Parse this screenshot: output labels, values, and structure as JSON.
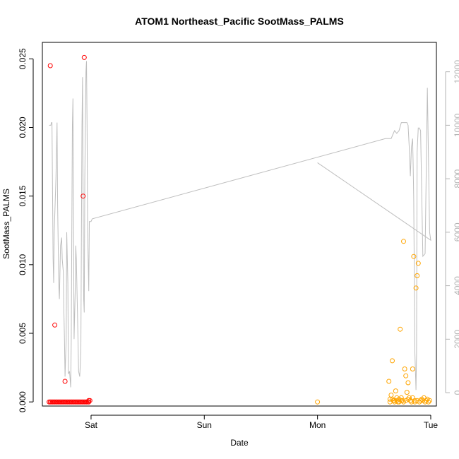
{
  "chart_data": {
    "type": "scatter",
    "title": "ATOM1 Northeast_Pacific SootMass_PALMS",
    "xlabel": "Date",
    "ylabel": "SootMass_PALMS",
    "x_ticks": [
      "Sat",
      "Sun",
      "Mon",
      "Tue"
    ],
    "y_ticks": [
      "0.000",
      "0.005",
      "0.010",
      "0.015",
      "0.020",
      "0.025"
    ],
    "y_ticks_values": [
      0.0,
      0.005,
      0.01,
      0.015,
      0.02,
      0.025
    ],
    "y2_ticks": [
      "0",
      "2000",
      "4000",
      "6000",
      "8000",
      "10000",
      "12000"
    ],
    "y2_ticks_values": [
      0,
      2000,
      4000,
      6000,
      8000,
      10000,
      12000
    ],
    "x_range_days": [
      -0.43,
      3.05
    ],
    "y_range": [
      -0.0003,
      0.0262
    ],
    "y2_range": [
      -500,
      13100
    ],
    "colors": {
      "series1": "#ff0000",
      "series2": "#ffa500",
      "altitude": "#bebebe",
      "right_axis": "#b3b3b3"
    },
    "series": [
      {
        "color": "#ff0000",
        "x": [
          -0.37,
          -0.36,
          -0.35,
          -0.34,
          -0.33,
          -0.32,
          -0.31,
          -0.3,
          -0.29,
          -0.28,
          -0.27,
          -0.26,
          -0.25,
          -0.24,
          -0.23,
          -0.22,
          -0.21,
          -0.2,
          -0.19,
          -0.18,
          -0.17,
          -0.16,
          -0.15,
          -0.14,
          -0.13,
          -0.12,
          -0.11,
          -0.1,
          -0.09,
          -0.08,
          -0.07,
          -0.06,
          -0.05,
          -0.04,
          -0.03,
          -0.02,
          -0.01,
          -0.36,
          -0.32,
          -0.23,
          -0.06,
          -0.07,
          -0.02
        ],
        "y": [
          0.0,
          0.0,
          0.0,
          0.0,
          0.0,
          0.0,
          0.0,
          0.0,
          0.0,
          0.0,
          0.0,
          0.0,
          0.0,
          0.0,
          0.0,
          0.0,
          0.0,
          0.0,
          0.0,
          0.0,
          0.0,
          0.0,
          0.0,
          0.0,
          0.0,
          0.0,
          0.0,
          0.0,
          0.0,
          0.0,
          0.0,
          0.0,
          0.0,
          0.0,
          0.0,
          0.0,
          0.0001,
          0.0245,
          0.0056,
          0.0015,
          0.0251,
          0.015,
          0.0001
        ]
      },
      {
        "color": "#ffa500",
        "x": [
          2.0,
          2.63,
          2.64,
          2.65,
          2.66,
          2.67,
          2.68,
          2.69,
          2.7,
          2.71,
          2.72,
          2.73,
          2.74,
          2.75,
          2.76,
          2.77,
          2.78,
          2.79,
          2.8,
          2.81,
          2.82,
          2.83,
          2.84,
          2.85,
          2.86,
          2.87,
          2.88,
          2.89,
          2.9,
          2.91,
          2.92,
          2.93,
          2.94,
          2.95,
          2.96,
          2.97,
          2.98,
          2.99,
          2.64,
          2.66,
          2.68,
          2.7,
          2.72,
          2.74,
          2.76,
          2.78,
          2.8,
          2.82,
          2.84,
          2.86,
          2.88
        ],
        "y": [
          0.0,
          0.0015,
          0.0,
          0.0005,
          0.0002,
          0.0001,
          0.0,
          0.0008,
          0.0001,
          0.0,
          0.0002,
          0.0053,
          0.0003,
          0.0001,
          0.0117,
          0.0024,
          0.0019,
          0.0007,
          0.0014,
          0.0003,
          0.0001,
          0.0,
          0.0024,
          0.0106,
          0.0,
          0.0083,
          0.0092,
          0.0101,
          0.0,
          0.0001,
          0.0002,
          0.0001,
          0.0003,
          0.0,
          0.0001,
          0.0002,
          0.0,
          0.0001,
          0.0002,
          0.003,
          0.0001,
          0.0003,
          0.0,
          0.0001,
          0.0,
          0.0001,
          0.0002,
          0.0001,
          0.0003,
          0.0001,
          0.0001
        ]
      }
    ],
    "altitude_line": {
      "color": "#bebebe",
      "x": [
        -0.37,
        -0.355,
        -0.35,
        -0.345,
        -0.335,
        -0.33,
        -0.325,
        -0.31,
        -0.3,
        -0.295,
        -0.285,
        -0.28,
        -0.27,
        -0.26,
        -0.255,
        -0.245,
        -0.24,
        -0.235,
        -0.23,
        -0.22,
        -0.215,
        -0.205,
        -0.2,
        -0.19,
        -0.18,
        -0.175,
        -0.165,
        -0.16,
        -0.15,
        -0.14,
        -0.135,
        -0.13,
        -0.12,
        -0.11,
        -0.1,
        -0.09,
        -0.085,
        -0.08,
        -0.075,
        -0.07,
        -0.065,
        -0.06,
        -0.055,
        -0.045,
        -0.04,
        -0.035,
        -0.03,
        -0.02,
        -0.015,
        -0.01,
        -0.005,
        0.0,
        0.01,
        2.6,
        2.63,
        2.64,
        2.65,
        2.66,
        2.68,
        2.7,
        2.72,
        2.74,
        2.76,
        2.78,
        2.79,
        2.8,
        2.81,
        2.82,
        2.83,
        2.84,
        2.845,
        2.85,
        2.86,
        2.87,
        2.875,
        2.88,
        2.89,
        2.9,
        2.91,
        2.92,
        2.93,
        2.95,
        2.97,
        2.99,
        3.0,
        2.0
      ],
      "y": [
        10000,
        10000,
        10100,
        10100,
        5000,
        4100,
        6000,
        8000,
        10100,
        7000,
        4000,
        3500,
        5500,
        5800,
        5000,
        4500,
        3000,
        2000,
        600,
        2000,
        6000,
        4100,
        700,
        800,
        200,
        2000,
        10000,
        11000,
        2000,
        3800,
        5500,
        5000,
        3000,
        800,
        600,
        1500,
        6000,
        10000,
        11800,
        7500,
        3500,
        3000,
        8000,
        12000,
        12400,
        10000,
        6000,
        3800,
        6400,
        6400,
        6400,
        6400,
        6500,
        9500,
        9500,
        9500,
        9500,
        9600,
        9800,
        9700,
        9800,
        10100,
        10100,
        10100,
        10100,
        10000,
        9200,
        8100,
        9200,
        9500,
        8500,
        7200,
        1500,
        100,
        1500,
        9000,
        9900,
        9900,
        9800,
        7500,
        5100,
        5200,
        11400,
        6000,
        5700,
        8600
      ]
    }
  }
}
